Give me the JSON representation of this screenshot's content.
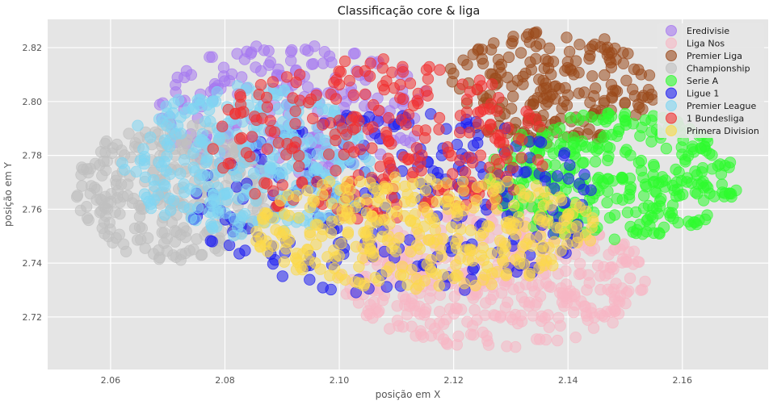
{
  "chart_data": {
    "type": "scatter",
    "title": "Classificação core & liga",
    "xlabel": "posição em X",
    "ylabel": "posição em Y",
    "xlim": [
      2.049,
      2.175
    ],
    "ylim": [
      2.7005,
      2.8305
    ],
    "xticks": [
      "2.06",
      "2.08",
      "2.10",
      "2.12",
      "2.14",
      "2.16"
    ],
    "yticks": [
      "2.72",
      "2.74",
      "2.76",
      "2.78",
      "2.80",
      "2.82"
    ],
    "grid": true,
    "legend_position": "top-right",
    "series": [
      {
        "name": "Eredivisie",
        "color": "#a678f0",
        "cx": 2.092,
        "cy": 2.797,
        "rx": 0.024,
        "ry": 0.025,
        "count": 230
      },
      {
        "name": "Liga Nos",
        "color": "#f7b7c4",
        "cx": 2.127,
        "cy": 2.735,
        "rx": 0.027,
        "ry": 0.027,
        "count": 420
      },
      {
        "name": "Premier Liga",
        "color": "#9b4a1c",
        "cx": 2.137,
        "cy": 2.805,
        "rx": 0.019,
        "ry": 0.021,
        "count": 210
      },
      {
        "name": "Championship",
        "color": "#c0c0c0",
        "cx": 2.071,
        "cy": 2.767,
        "rx": 0.017,
        "ry": 0.026,
        "count": 300
      },
      {
        "name": "Serie A",
        "color": "#2efc2e",
        "cx": 2.148,
        "cy": 2.772,
        "rx": 0.022,
        "ry": 0.024,
        "count": 340
      },
      {
        "name": "Ligue 1",
        "color": "#1e1ef0",
        "cx": 2.11,
        "cy": 2.762,
        "rx": 0.036,
        "ry": 0.034,
        "count": 260
      },
      {
        "name": "Premier League",
        "color": "#7fd6f2",
        "cx": 2.084,
        "cy": 2.778,
        "rx": 0.022,
        "ry": 0.028,
        "count": 330
      },
      {
        "name": "1 Bundesliga",
        "color": "#f23030",
        "cx": 2.107,
        "cy": 2.785,
        "rx": 0.03,
        "ry": 0.031,
        "count": 260
      },
      {
        "name": "Primera Division",
        "color": "#fcd94a",
        "cx": 2.115,
        "cy": 2.752,
        "rx": 0.03,
        "ry": 0.022,
        "count": 330
      }
    ]
  }
}
